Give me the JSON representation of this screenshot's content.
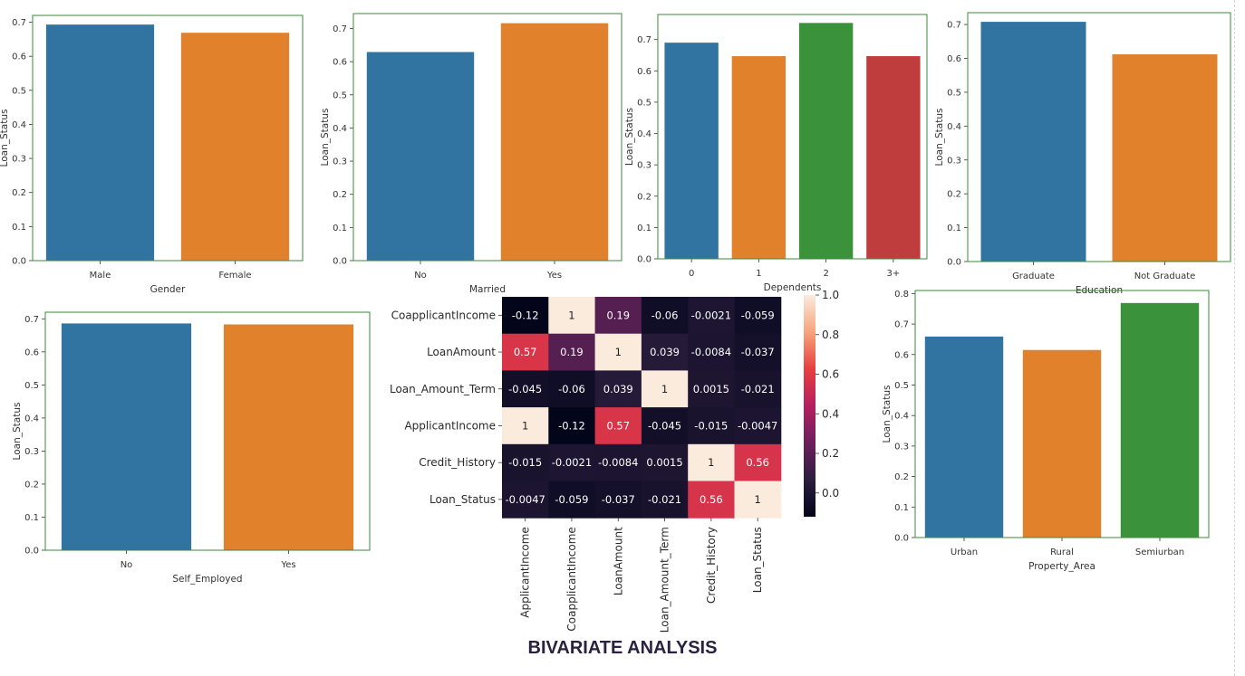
{
  "page_title": "BIVARIATE ANALYSIS",
  "colors": {
    "blue": "#3274a1",
    "orange": "#e1812c",
    "green": "#3a923a",
    "red": "#c03d3e",
    "axes_border": "#3c8a3c"
  },
  "chart_data": [
    {
      "id": "gender",
      "type": "bar",
      "categories": [
        "Male",
        "Female"
      ],
      "values": [
        0.693,
        0.669
      ],
      "xlabel": "Gender",
      "ylabel": "Loan_Status",
      "ylim": [
        0,
        0.72
      ],
      "yticks": [
        0.0,
        0.1,
        0.2,
        0.3,
        0.4,
        0.5,
        0.6,
        0.7
      ],
      "ytick_labels": [
        "0.0",
        "0.1",
        "0.2",
        "0.3",
        "0.4",
        "0.5",
        "0.6",
        "0.7"
      ],
      "colors": [
        "#3274a1",
        "#e1812c"
      ]
    },
    {
      "id": "married",
      "type": "bar",
      "categories": [
        "No",
        "Yes"
      ],
      "values": [
        0.629,
        0.716
      ],
      "xlabel": "Married",
      "ylabel": "Loan_Status",
      "ylim": [
        0,
        0.745
      ],
      "yticks": [
        0.0,
        0.1,
        0.2,
        0.3,
        0.4,
        0.5,
        0.6,
        0.7
      ],
      "ytick_labels": [
        "0.0",
        "0.1",
        "0.2",
        "0.3",
        "0.4",
        "0.5",
        "0.6",
        "0.7"
      ],
      "colors": [
        "#3274a1",
        "#e1812c"
      ]
    },
    {
      "id": "dependents",
      "type": "bar",
      "categories": [
        "0",
        "1",
        "2",
        "3+"
      ],
      "values": [
        0.69,
        0.647,
        0.753,
        0.647
      ],
      "xlabel": "Dependents",
      "ylabel": "Loan_Status",
      "ylim": [
        0,
        0.78
      ],
      "yticks": [
        0.0,
        0.1,
        0.2,
        0.3,
        0.4,
        0.5,
        0.6,
        0.7
      ],
      "ytick_labels": [
        "0.0",
        "0.1",
        "0.2",
        "0.3",
        "0.4",
        "0.5",
        "0.6",
        "0.7"
      ],
      "colors": [
        "#3274a1",
        "#e1812c",
        "#3a923a",
        "#c03d3e"
      ]
    },
    {
      "id": "education",
      "type": "bar",
      "categories": [
        "Graduate",
        "Not Graduate"
      ],
      "values": [
        0.708,
        0.612
      ],
      "xlabel": "Education",
      "ylabel": "Loan_Status",
      "ylim": [
        0,
        0.735
      ],
      "yticks": [
        0.0,
        0.1,
        0.2,
        0.3,
        0.4,
        0.5,
        0.6,
        0.7
      ],
      "ytick_labels": [
        "0.0",
        "0.1",
        "0.2",
        "0.3",
        "0.4",
        "0.5",
        "0.6",
        "0.7"
      ],
      "colors": [
        "#3274a1",
        "#e1812c"
      ]
    },
    {
      "id": "self_employed",
      "type": "bar",
      "categories": [
        "No",
        "Yes"
      ],
      "values": [
        0.686,
        0.683
      ],
      "xlabel": "Self_Employed",
      "ylabel": "Loan_Status",
      "ylim": [
        0,
        0.72
      ],
      "yticks": [
        0.0,
        0.1,
        0.2,
        0.3,
        0.4,
        0.5,
        0.6,
        0.7
      ],
      "ytick_labels": [
        "0.0",
        "0.1",
        "0.2",
        "0.3",
        "0.4",
        "0.5",
        "0.6",
        "0.7"
      ],
      "colors": [
        "#3274a1",
        "#e1812c"
      ]
    },
    {
      "id": "property_area",
      "type": "bar",
      "categories": [
        "Urban",
        "Rural",
        "Semiurban"
      ],
      "values": [
        0.659,
        0.615,
        0.769
      ],
      "xlabel": "Property_Area",
      "ylabel": "Loan_Status",
      "ylim": [
        0,
        0.81
      ],
      "yticks": [
        0.0,
        0.1,
        0.2,
        0.3,
        0.4,
        0.5,
        0.6,
        0.7,
        0.8
      ],
      "ytick_labels": [
        "0.0",
        "0.1",
        "0.2",
        "0.3",
        "0.4",
        "0.5",
        "0.6",
        "0.7",
        "0.8"
      ],
      "colors": [
        "#3274a1",
        "#e1812c",
        "#3a923a"
      ]
    },
    {
      "id": "correlation",
      "type": "heatmap",
      "rows": [
        "CoapplicantIncome",
        "LoanAmount",
        "Loan_Amount_Term",
        "ApplicantIncome",
        "Credit_History",
        "Loan_Status"
      ],
      "columns": [
        "ApplicantIncome",
        "CoapplicantIncome",
        "LoanAmount",
        "Loan_Amount_Term",
        "Credit_History",
        "Loan_Status"
      ],
      "values": [
        [
          -0.12,
          1,
          0.19,
          -0.06,
          -0.0021,
          -0.059
        ],
        [
          0.57,
          0.19,
          1,
          0.039,
          -0.0084,
          -0.037
        ],
        [
          -0.045,
          -0.06,
          0.039,
          1,
          0.0015,
          -0.021
        ],
        [
          1,
          -0.12,
          0.57,
          -0.045,
          -0.015,
          -0.0047
        ],
        [
          -0.015,
          -0.0021,
          -0.0084,
          0.0015,
          1,
          0.56
        ],
        [
          -0.0047,
          -0.059,
          -0.037,
          -0.021,
          0.56,
          1
        ]
      ],
      "labels": [
        [
          "-0.12",
          "1",
          "0.19",
          "-0.06",
          "-0.0021",
          "-0.059"
        ],
        [
          "0.57",
          "0.19",
          "1",
          "0.039",
          "-0.0084",
          "-0.037"
        ],
        [
          "-0.045",
          "-0.06",
          "0.039",
          "1",
          "0.0015",
          "-0.021"
        ],
        [
          "1",
          "-0.12",
          "0.57",
          "-0.045",
          "-0.015",
          "-0.0047"
        ],
        [
          "-0.015",
          "-0.0021",
          "-0.0084",
          "0.0015",
          "1",
          "0.56"
        ],
        [
          "-0.0047",
          "-0.059",
          "-0.037",
          "-0.021",
          "0.56",
          "1"
        ]
      ],
      "colorbar": {
        "range": [
          -0.12,
          1.0
        ],
        "ticks": [
          0.0,
          0.2,
          0.4,
          0.6,
          0.8,
          1.0
        ],
        "tick_labels": [
          "0.0",
          "0.2",
          "0.4",
          "0.6",
          "0.8",
          "1.0"
        ]
      },
      "colormap": [
        "#03051a",
        "#2c1e3e",
        "#6b1f5d",
        "#b41f5f",
        "#e83f3f",
        "#f6a47c",
        "#faebdd"
      ]
    }
  ]
}
